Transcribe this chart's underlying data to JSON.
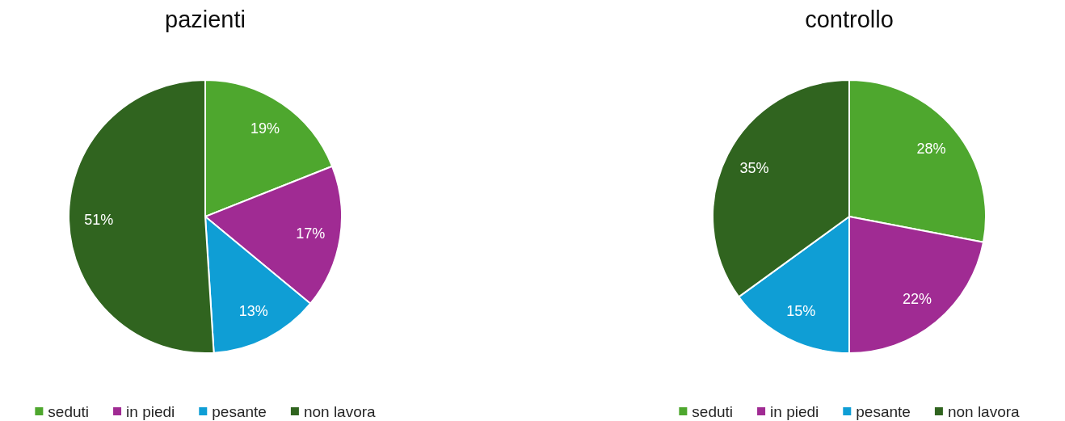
{
  "chart_data": [
    {
      "type": "pie",
      "title": "pazienti",
      "categories": [
        "seduti",
        "in piedi",
        "pesante",
        "non lavora"
      ],
      "values": [
        19,
        17,
        13,
        51
      ],
      "colors": [
        "#4ea72e",
        "#a02b93",
        "#0f9ed5",
        "#30641f"
      ],
      "value_labels": [
        "19%",
        "17%",
        "13%",
        "51%"
      ],
      "legend": "bottom"
    },
    {
      "type": "pie",
      "title": "controllo",
      "categories": [
        "seduti",
        "in piedi",
        "pesante",
        "non lavora"
      ],
      "values": [
        28,
        22,
        15,
        35
      ],
      "colors": [
        "#4ea72e",
        "#a02b93",
        "#0f9ed5",
        "#30641f"
      ],
      "value_labels": [
        "28%",
        "22%",
        "15%",
        "35%"
      ],
      "legend": "bottom"
    }
  ]
}
